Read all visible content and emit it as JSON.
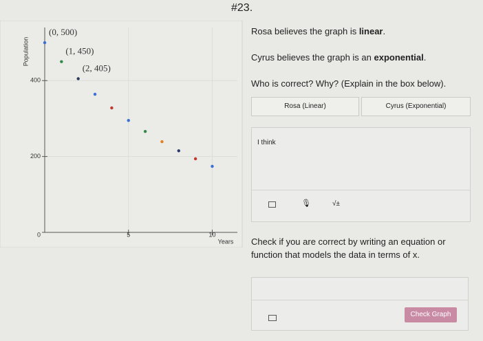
{
  "heading": "#23.",
  "chart_data": {
    "type": "scatter",
    "x_label": "Years",
    "y_label": "Population",
    "x": [
      0,
      1,
      2,
      3,
      4,
      5,
      6,
      7,
      8,
      9,
      10
    ],
    "series": [
      {
        "values": [
          500,
          450,
          405,
          364,
          328,
          295,
          266,
          239,
          215,
          194,
          174
        ],
        "colors": [
          "#3b6fd6",
          "#2f8a4a",
          "#2a3a5a",
          "#3b6fd6",
          "#c0392b",
          "#3b6fd6",
          "#2f8a4a",
          "#e67e22",
          "#2a3a6a",
          "#c0392b",
          "#3b6fd6"
        ]
      }
    ],
    "annotations": [
      "(0, 500)",
      "(1, 450)",
      "(2, 405)"
    ],
    "xlim": [
      0,
      11.5
    ],
    "ylim": [
      0,
      540
    ],
    "xticks": [
      5,
      10
    ],
    "yticks": [
      0,
      200,
      400
    ],
    "grid": true
  },
  "statements": [
    {
      "before": "Rosa believes the graph is ",
      "bold": "linear",
      "after": "."
    },
    {
      "before": "Cyrus believes the graph is an ",
      "bold": "exponential",
      "after": "."
    }
  ],
  "question": "Who is correct? Why? (Explain in the box below).",
  "choices": [
    "Rosa (Linear)",
    "Cyrus (Exponential)"
  ],
  "answer_placeholder": "I think",
  "math_button": "√±",
  "instruction": "Check if you are correct by writing an equation or function that models the data in terms of x.",
  "check_button": "Check Graph"
}
